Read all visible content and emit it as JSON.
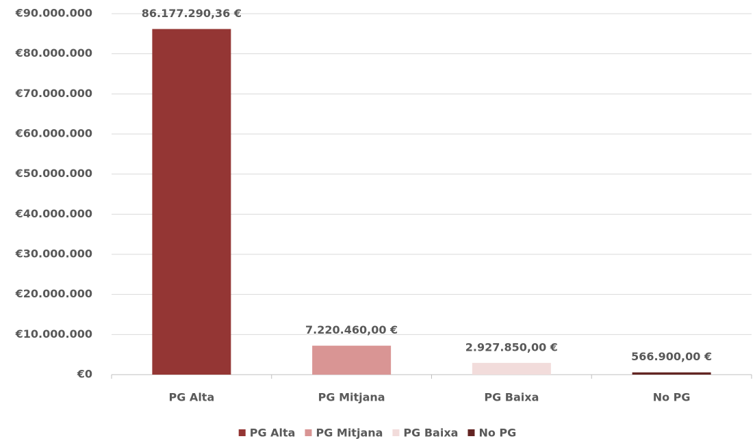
{
  "chart_data": {
    "type": "bar",
    "categories": [
      "PG Alta",
      "PG Mitjana",
      "PG Baixa",
      "No PG"
    ],
    "values": [
      86177290.36,
      7220460,
      2927850,
      566900
    ],
    "value_labels": [
      "86.177.290,36 €",
      "7.220.460,00 €",
      "2.927.850,00 €",
      "566.900,00 €"
    ],
    "colors": [
      "#943634",
      "#d99594",
      "#f2dcdb",
      "#632523"
    ],
    "ylim": [
      0,
      90000000
    ],
    "yticks": [
      {
        "value": 0,
        "label": "€0"
      },
      {
        "value": 10000000,
        "label": "€10.000.000"
      },
      {
        "value": 20000000,
        "label": "€20.000.000"
      },
      {
        "value": 30000000,
        "label": "€30.000.000"
      },
      {
        "value": 40000000,
        "label": "€40.000.000"
      },
      {
        "value": 50000000,
        "label": "€50.000.000"
      },
      {
        "value": 60000000,
        "label": "€60.000.000"
      },
      {
        "value": 70000000,
        "label": "€70.000.000"
      },
      {
        "value": 80000000,
        "label": "€80.000.000"
      },
      {
        "value": 90000000,
        "label": "€90.000.000"
      }
    ],
    "grid": true,
    "legend": "bottom"
  }
}
